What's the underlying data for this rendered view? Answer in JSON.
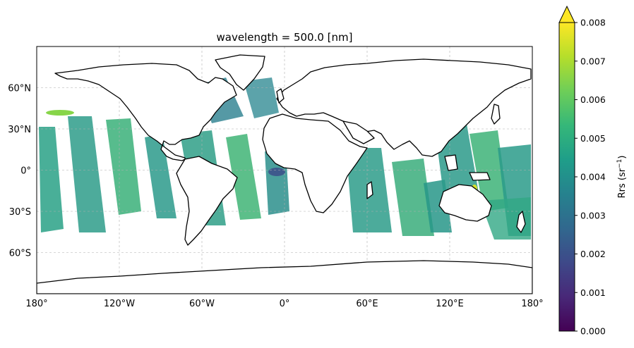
{
  "map": {
    "title": "wavelength = 500.0 [nm]",
    "lon_ticks": [
      "180°",
      "120°W",
      "60°W",
      "0°",
      "60°E",
      "120°E",
      "180°"
    ],
    "lat_ticks": [
      "60°N",
      "30°N",
      "0°",
      "30°S",
      "60°S"
    ],
    "lon_values": [
      -180,
      -120,
      -60,
      0,
      60,
      120,
      180
    ],
    "lat_values": [
      60,
      30,
      0,
      -30,
      -60
    ],
    "extent": {
      "lon": [
        -180,
        180
      ],
      "lat": [
        -90,
        90
      ]
    },
    "projection": "PlateCarree",
    "gridlines": "dashed gray"
  },
  "colorbar": {
    "label": "Rrs (sr",
    "label_sup": "−1",
    "label_end": ")",
    "label_italic_part": "sr",
    "ticks": [
      "0.000",
      "0.001",
      "0.002",
      "0.003",
      "0.004",
      "0.005",
      "0.006",
      "0.007",
      "0.008"
    ],
    "range": [
      0.0,
      0.008
    ],
    "extend": "max",
    "colormap": "viridis",
    "colors": [
      "#440154",
      "#482878",
      "#3e4989",
      "#31688e",
      "#26828e",
      "#1f9e89",
      "#35b779",
      "#6ece58",
      "#b5de2b",
      "#fde725"
    ]
  }
}
